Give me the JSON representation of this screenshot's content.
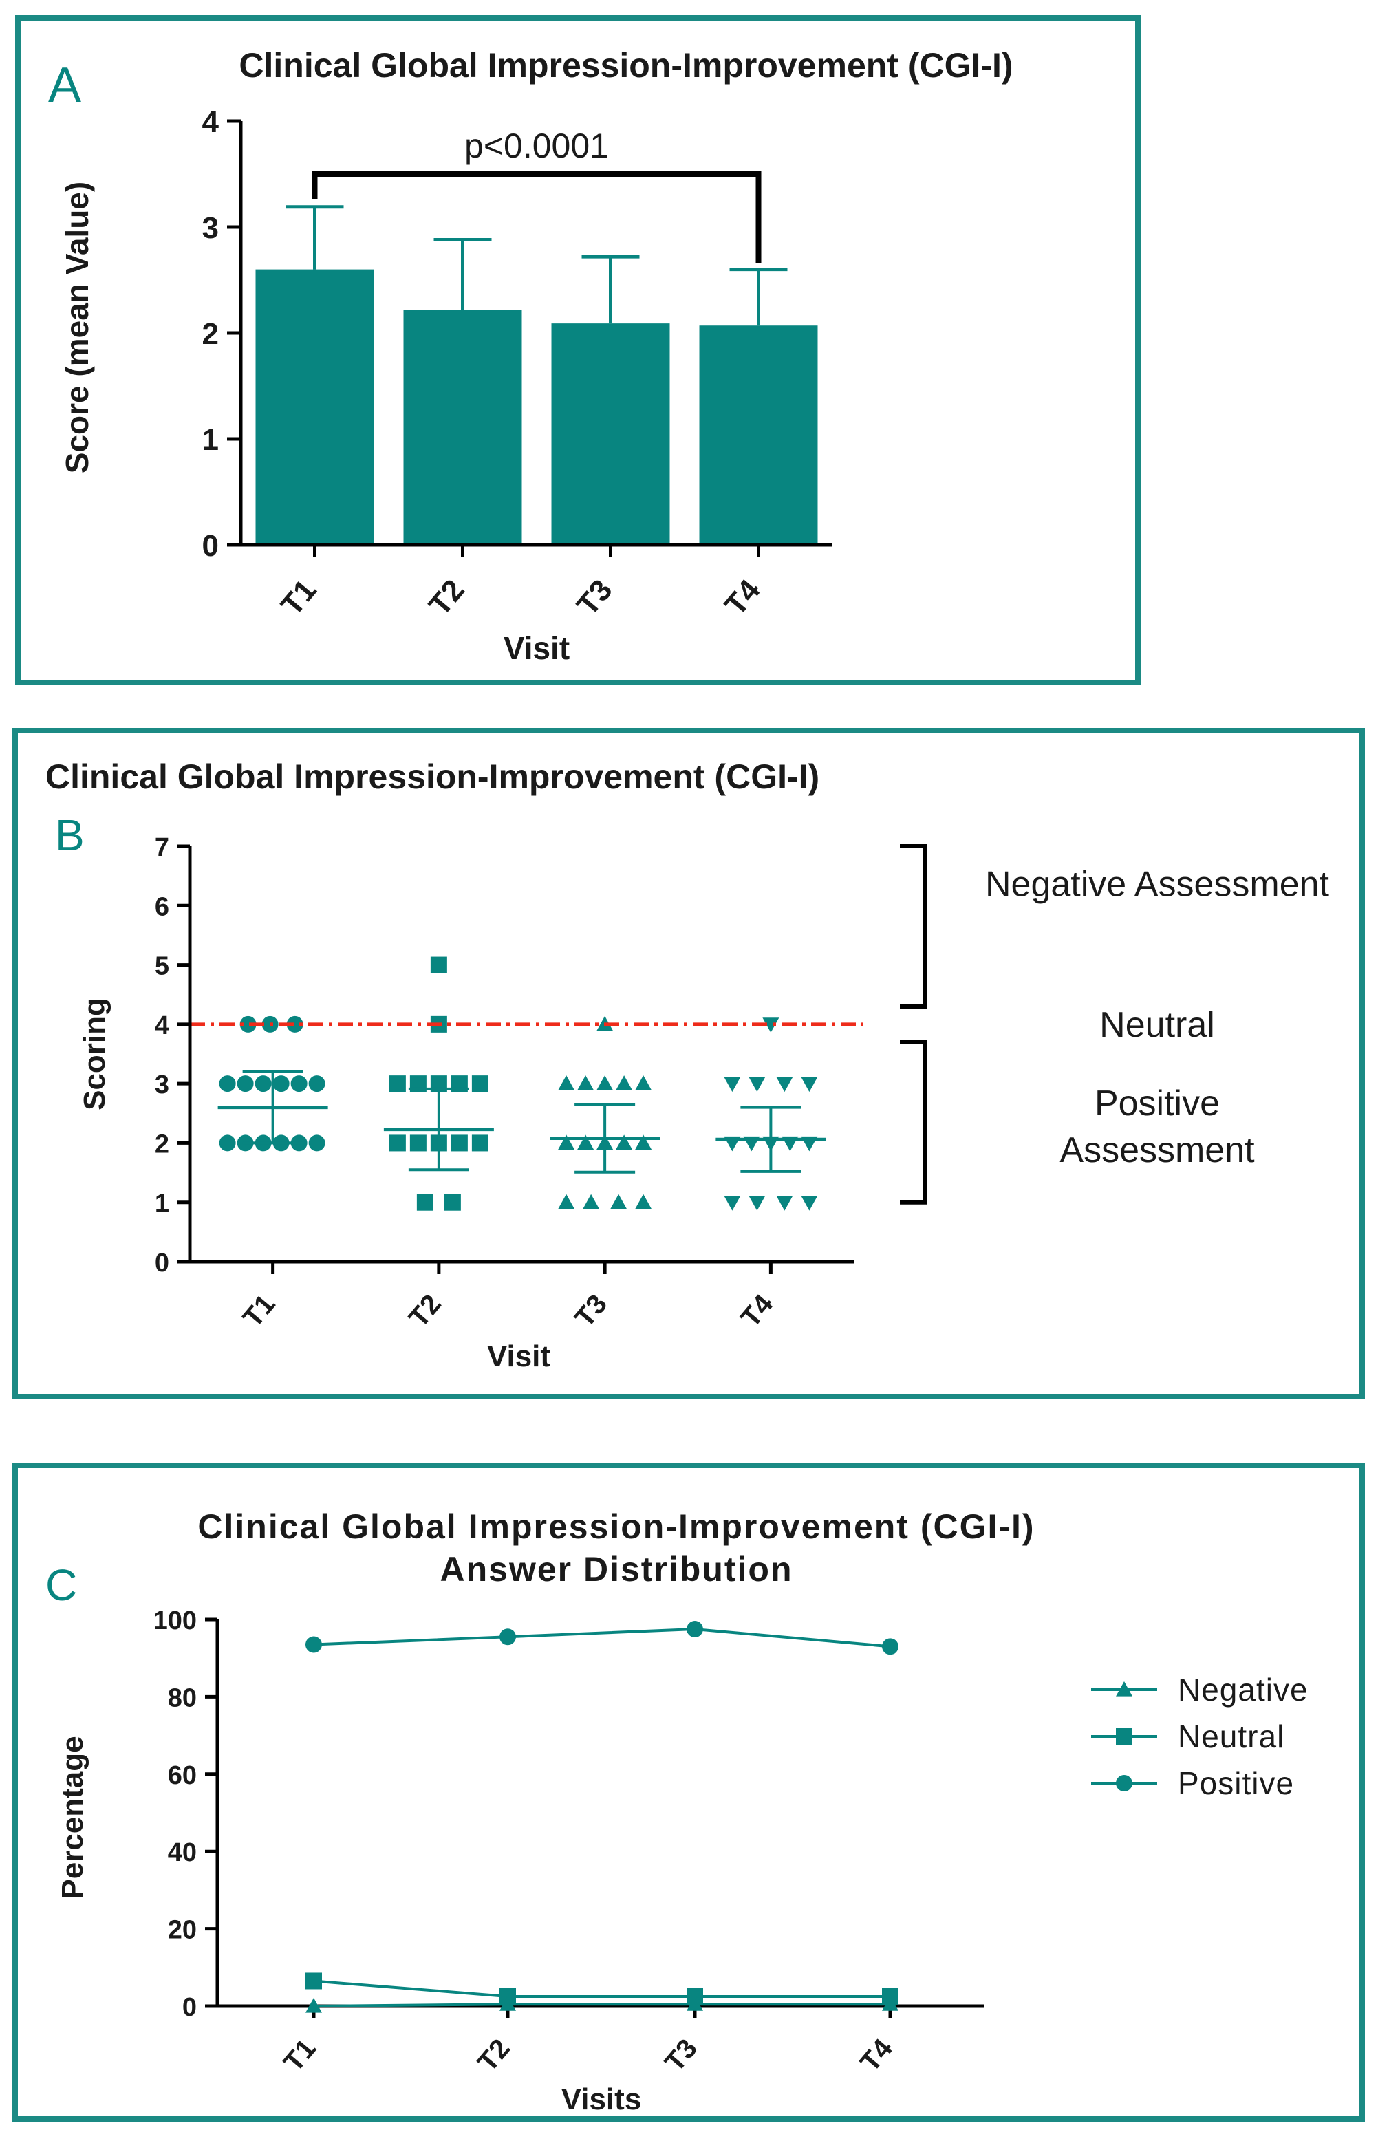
{
  "colors": {
    "teal": "#088580",
    "frame": "#1b8a84",
    "axis": "#000000",
    "ref_line": "#ee2b1a",
    "label": "#1a1a1a"
  },
  "chart_data": [
    {
      "panel": "A",
      "type": "bar",
      "title": "Clinical Global Impression-Improvement (CGI-I)",
      "xlabel": "Visit",
      "ylabel": "Score (mean Value)",
      "categories": [
        "T1",
        "T2",
        "T3",
        "T4"
      ],
      "values": [
        2.6,
        2.22,
        2.09,
        2.07
      ],
      "error": [
        0.59,
        0.66,
        0.63,
        0.53
      ],
      "ylim": [
        0,
        4
      ],
      "yticks": [
        "0",
        "1",
        "2",
        "3",
        "4"
      ],
      "annotation": {
        "text": "p<0.0001",
        "from": "T1",
        "to": "T4",
        "y": 3.5
      }
    },
    {
      "panel": "B",
      "type": "scatter",
      "title": "Clinical Global Impression-Improvement (CGI-I)",
      "xlabel": "Visit",
      "ylabel": "Scoring",
      "categories": [
        "T1",
        "T2",
        "T3",
        "T4"
      ],
      "markers": [
        "circle",
        "square",
        "triangle-up",
        "triangle-down"
      ],
      "points": [
        [
          [
            4,
            -0.18
          ],
          [
            4,
            -0.02
          ],
          [
            4,
            0.16
          ],
          [
            3,
            -0.33
          ],
          [
            3,
            -0.2
          ],
          [
            3,
            -0.07
          ],
          [
            3,
            0.06
          ],
          [
            3,
            0.19
          ],
          [
            3,
            0.32
          ],
          [
            2,
            -0.33
          ],
          [
            2,
            -0.2
          ],
          [
            2,
            -0.07
          ],
          [
            2,
            0.06
          ],
          [
            2,
            0.19
          ],
          [
            2,
            0.32
          ]
        ],
        [
          [
            5,
            0
          ],
          [
            4,
            0
          ],
          [
            3,
            -0.3
          ],
          [
            3,
            -0.15
          ],
          [
            3,
            0
          ],
          [
            3,
            0.15
          ],
          [
            3,
            0.3
          ],
          [
            2,
            -0.3
          ],
          [
            2,
            -0.15
          ],
          [
            2,
            0
          ],
          [
            2,
            0.15
          ],
          [
            2,
            0.3
          ],
          [
            1,
            -0.1
          ],
          [
            1,
            0.1
          ]
        ],
        [
          [
            4,
            0
          ],
          [
            3,
            -0.28
          ],
          [
            3,
            -0.14
          ],
          [
            3,
            0
          ],
          [
            3,
            0.14
          ],
          [
            3,
            0.28
          ],
          [
            2,
            -0.28
          ],
          [
            2,
            -0.14
          ],
          [
            2,
            0
          ],
          [
            2,
            0.14
          ],
          [
            2,
            0.28
          ],
          [
            1,
            -0.28
          ],
          [
            1,
            -0.1
          ],
          [
            1,
            0.1
          ],
          [
            1,
            0.28
          ]
        ],
        [
          [
            4,
            0
          ],
          [
            3,
            -0.28
          ],
          [
            3,
            -0.1
          ],
          [
            3,
            0.1
          ],
          [
            3,
            0.28
          ],
          [
            2,
            -0.28
          ],
          [
            2,
            -0.14
          ],
          [
            2,
            0
          ],
          [
            2,
            0.14
          ],
          [
            2,
            0.28
          ],
          [
            1,
            -0.28
          ],
          [
            1,
            -0.1
          ],
          [
            1,
            0.1
          ],
          [
            1,
            0.28
          ]
        ]
      ],
      "mean": [
        2.6,
        2.23,
        2.08,
        2.06
      ],
      "sd": [
        0.6,
        0.68,
        0.57,
        0.54
      ],
      "ylim": [
        0,
        7
      ],
      "yticks": [
        "0",
        "1",
        "2",
        "3",
        "4",
        "5",
        "6",
        "7"
      ],
      "reference_line": 4,
      "brackets": [
        {
          "label": "Negative Assessment",
          "from": 4.3,
          "to": 7
        },
        {
          "label": "Neutral",
          "at": 4
        },
        {
          "label_lines": [
            "Positive",
            "Assessment"
          ],
          "from": 1,
          "to": 3.7
        }
      ]
    },
    {
      "panel": "C",
      "type": "line",
      "title": "Clinical Global Impression-Improvement (CGI-I)",
      "subtitle": "Answer Distribution",
      "xlabel": "Visits",
      "ylabel": "Percentage",
      "categories": [
        "T1",
        "T2",
        "T3",
        "T4"
      ],
      "ylim": [
        0,
        100
      ],
      "yticks": [
        "0",
        "20",
        "40",
        "60",
        "80",
        "100"
      ],
      "series": [
        {
          "name": "Negative",
          "marker": "triangle",
          "values": [
            0,
            0.5,
            0.5,
            0.5
          ]
        },
        {
          "name": "Neutral",
          "marker": "square",
          "values": [
            6.5,
            2.5,
            2.5,
            2.5
          ]
        },
        {
          "name": "Positive",
          "marker": "circle",
          "values": [
            93.5,
            95.5,
            97.5,
            93
          ]
        }
      ],
      "legend": "right"
    }
  ]
}
